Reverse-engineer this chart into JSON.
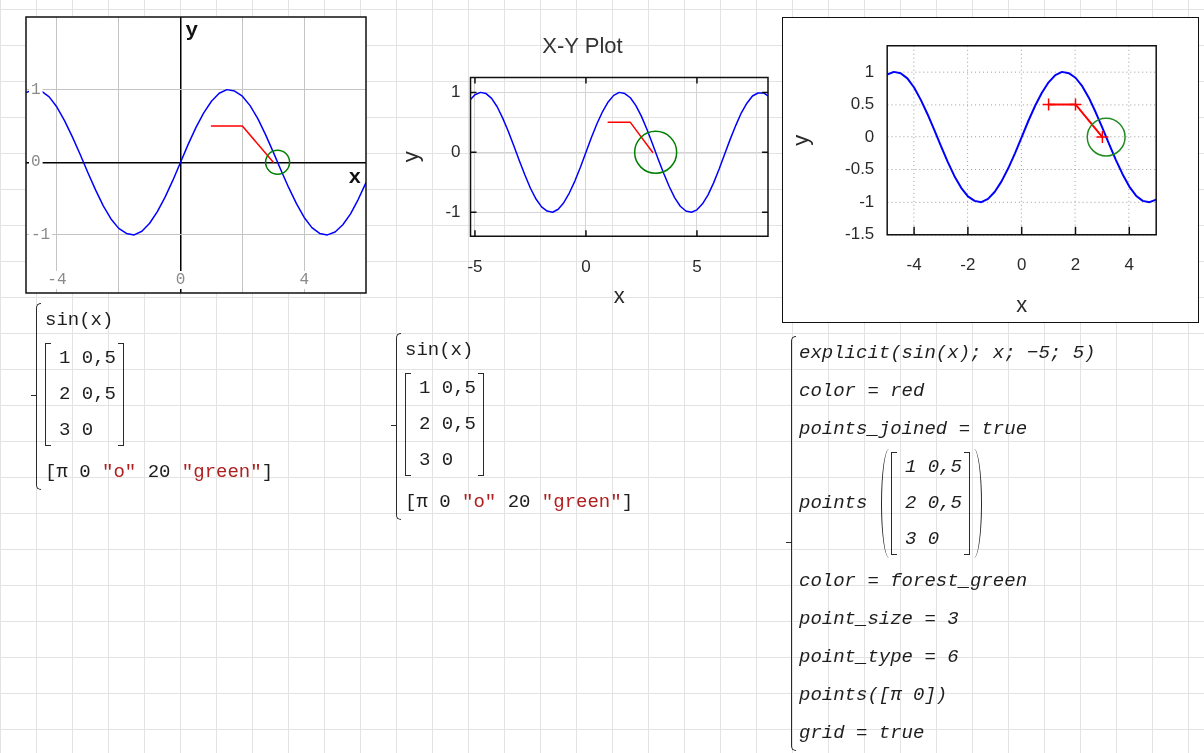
{
  "chart_data": [
    {
      "type": "line",
      "xlabel": "x",
      "ylabel": "y",
      "xlim": [
        -5,
        6
      ],
      "ylim": [
        -1.8,
        2
      ],
      "xticks": [
        -4,
        {
          "value": -2,
          "label": null
        },
        0,
        {
          "value": 2,
          "label": null
        },
        4
      ],
      "yticks": [
        -1,
        0,
        1
      ],
      "grid": true,
      "series": [
        {
          "color": "#0000ff",
          "marker": "none",
          "x": [
            -5,
            -4.75,
            -4.5,
            -4.25,
            -4,
            -3.75,
            -3.5,
            -3.25,
            -3,
            -2.75,
            -2.5,
            -2.25,
            -2,
            -1.75,
            -1.5,
            -1.25,
            -1,
            -0.75,
            -0.5,
            -0.25,
            0,
            0.25,
            0.5,
            0.75,
            1,
            1.25,
            1.5,
            1.75,
            2,
            2.25,
            2.5,
            2.75,
            3,
            3.25,
            3.5,
            3.75,
            4,
            4.25,
            4.5,
            4.75,
            5,
            5.25,
            5.5,
            5.75,
            6
          ],
          "values": [
            0.96,
            1,
            0.98,
            0.9,
            0.76,
            0.57,
            0.35,
            0.11,
            -0.14,
            -0.38,
            -0.6,
            -0.78,
            -0.91,
            -0.98,
            -1,
            -0.95,
            -0.84,
            -0.68,
            -0.48,
            -0.25,
            0,
            0.25,
            0.48,
            0.68,
            0.84,
            0.95,
            1,
            0.98,
            0.91,
            0.78,
            0.6,
            0.38,
            0.14,
            -0.11,
            -0.35,
            -0.57,
            -0.76,
            -0.9,
            -0.98,
            -1,
            -0.96,
            -0.86,
            -0.71,
            -0.51,
            -0.28
          ]
        },
        {
          "color": "#ff0000",
          "marker": "none",
          "x": [
            1,
            2,
            3
          ],
          "values": [
            0.5,
            0.5,
            0
          ]
        },
        {
          "type": "scatter",
          "color": "#008000",
          "marker": "circle",
          "x": [
            3.14
          ],
          "values": [
            0
          ]
        }
      ],
      "annotations": [
        "sin(x)",
        "1 0,5",
        "2 0,5",
        "3 0",
        "[π 0 \"o\" 20 \"green\"]"
      ]
    },
    {
      "type": "line",
      "title": "X-Y Plot",
      "xlabel": "x",
      "ylabel": "y",
      "xlim": [
        -5.2,
        8.2
      ],
      "ylim": [
        -1.4,
        1.25
      ],
      "xticks": [
        -5,
        0,
        5
      ],
      "yticks": [
        -1,
        0,
        1
      ],
      "grid": true,
      "series": [
        {
          "color": "#0000ff",
          "marker": "none",
          "x": [
            -5.2,
            -5,
            -4.75,
            -4.5,
            -4.25,
            -4,
            -3.75,
            -3.5,
            -3.25,
            -3,
            -2.75,
            -2.5,
            -2.25,
            -2,
            -1.75,
            -1.5,
            -1.25,
            -1,
            -0.75,
            -0.5,
            -0.25,
            0,
            0.25,
            0.5,
            0.75,
            1,
            1.25,
            1.5,
            1.75,
            2,
            2.25,
            2.5,
            2.75,
            3,
            3.25,
            3.5,
            3.75,
            4,
            4.25,
            4.5,
            4.75,
            5,
            5.25,
            5.5,
            5.75,
            6,
            6.25,
            6.5,
            6.75,
            7,
            7.25,
            7.5,
            7.75,
            8,
            8.2
          ],
          "values": [
            0.88,
            0.96,
            1,
            0.98,
            0.9,
            0.76,
            0.57,
            0.35,
            0.11,
            -0.14,
            -0.38,
            -0.6,
            -0.78,
            -0.91,
            -0.98,
            -1,
            -0.95,
            -0.84,
            -0.68,
            -0.48,
            -0.25,
            0,
            0.25,
            0.48,
            0.68,
            0.84,
            0.95,
            1,
            0.98,
            0.91,
            0.78,
            0.6,
            0.38,
            0.14,
            -0.11,
            -0.35,
            -0.57,
            -0.76,
            -0.9,
            -0.98,
            -1,
            -0.96,
            -0.86,
            -0.71,
            -0.51,
            -0.28,
            -0.03,
            0.22,
            0.45,
            0.66,
            0.82,
            0.94,
            0.99,
            0.99,
            0.94
          ]
        },
        {
          "color": "#ff0000",
          "marker": "none",
          "x": [
            1,
            2,
            3
          ],
          "values": [
            0.5,
            0.5,
            0
          ]
        },
        {
          "type": "scatter",
          "color": "#008000",
          "marker": "circle",
          "x": [
            3.14
          ],
          "values": [
            0
          ]
        }
      ],
      "annotations": [
        "sin(x)",
        "1 0,5",
        "2 0,5",
        "3 0",
        "[π 0 \"o\" 20 \"green\"]"
      ]
    },
    {
      "type": "line",
      "xlabel": "x",
      "ylabel": "y",
      "xlim": [
        -5,
        5
      ],
      "ylim": [
        -1.5,
        1.4
      ],
      "xticks": [
        -4,
        -2,
        0,
        2,
        4
      ],
      "yticks": [
        -1.5,
        -1,
        -0.5,
        0,
        0.5,
        1
      ],
      "grid": true,
      "series": [
        {
          "color": "#0000ff",
          "marker": "none",
          "x": [
            -5,
            -4.75,
            -4.5,
            -4.25,
            -4,
            -3.75,
            -3.5,
            -3.25,
            -3,
            -2.75,
            -2.5,
            -2.25,
            -2,
            -1.75,
            -1.5,
            -1.25,
            -1,
            -0.75,
            -0.5,
            -0.25,
            0,
            0.25,
            0.5,
            0.75,
            1,
            1.25,
            1.5,
            1.75,
            2,
            2.25,
            2.5,
            2.75,
            3,
            3.25,
            3.5,
            3.75,
            4,
            4.25,
            4.5,
            4.75,
            5
          ],
          "values": [
            0.96,
            1,
            0.98,
            0.9,
            0.76,
            0.57,
            0.35,
            0.11,
            -0.14,
            -0.38,
            -0.6,
            -0.78,
            -0.91,
            -0.98,
            -1,
            -0.95,
            -0.84,
            -0.68,
            -0.48,
            -0.25,
            0,
            0.25,
            0.48,
            0.68,
            0.84,
            0.95,
            1,
            0.98,
            0.91,
            0.78,
            0.6,
            0.38,
            0.14,
            -0.11,
            -0.35,
            -0.57,
            -0.76,
            -0.9,
            -0.98,
            -1,
            -0.96
          ]
        },
        {
          "color": "#ff0000",
          "marker": "cross",
          "x": [
            1,
            2,
            3
          ],
          "values": [
            0.5,
            0.5,
            0
          ]
        },
        {
          "type": "scatter",
          "color": "#228b22",
          "marker": "circle",
          "x": [
            3.14
          ],
          "values": [
            0
          ]
        }
      ],
      "annotations": [
        "explicit(sin(x); x; −5; 5)",
        "color = red",
        "points_joined = true",
        "points",
        "1 0,5",
        "2 0,5",
        "3 0",
        "color = forest_green",
        "point_size = 3",
        "point_type = 6",
        "points([π 0])",
        "grid = true"
      ]
    }
  ]
}
